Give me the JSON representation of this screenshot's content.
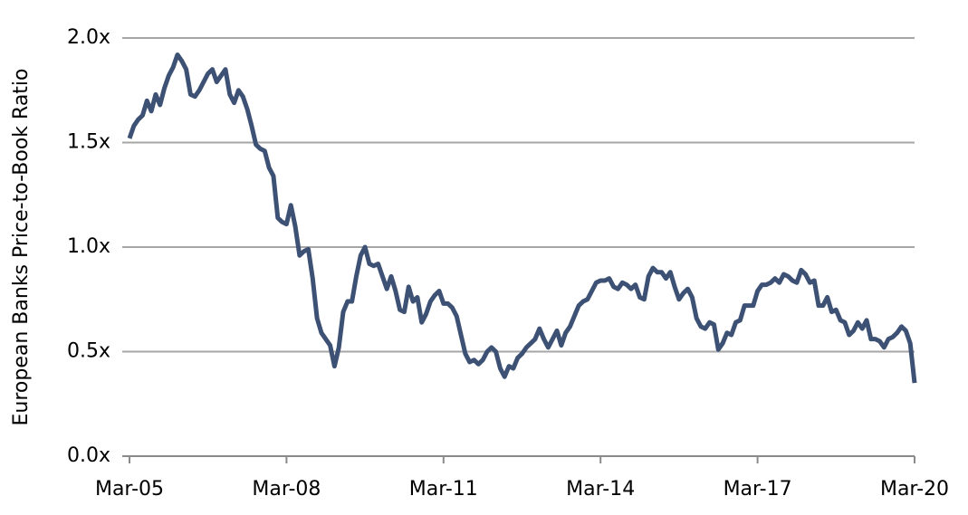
{
  "chart_data": {
    "type": "line",
    "y_label": "European Banks Price-to-Book Ratio",
    "categories": [
      "Mar-05",
      null,
      null,
      null,
      null,
      null,
      null,
      null,
      null,
      null,
      null,
      null,
      null,
      null,
      null,
      null,
      null,
      null,
      null,
      null,
      null,
      null,
      null,
      null,
      null,
      null,
      null,
      null,
      null,
      null,
      null,
      null,
      null,
      null,
      null,
      null,
      "Mar-08",
      null,
      null,
      null,
      null,
      null,
      null,
      null,
      null,
      null,
      null,
      null,
      null,
      null,
      null,
      null,
      null,
      null,
      null,
      null,
      null,
      null,
      null,
      null,
      null,
      null,
      null,
      null,
      null,
      null,
      null,
      null,
      null,
      null,
      null,
      null,
      "Mar-11",
      null,
      null,
      null,
      null,
      null,
      null,
      null,
      null,
      null,
      null,
      null,
      null,
      null,
      null,
      null,
      null,
      null,
      null,
      null,
      null,
      null,
      null,
      null,
      null,
      null,
      null,
      null,
      null,
      null,
      null,
      null,
      null,
      null,
      null,
      null,
      "Mar-14",
      null,
      null,
      null,
      null,
      null,
      null,
      null,
      null,
      null,
      null,
      null,
      null,
      null,
      null,
      null,
      null,
      null,
      null,
      null,
      null,
      null,
      null,
      null,
      null,
      null,
      null,
      null,
      null,
      null,
      null,
      null,
      null,
      null,
      null,
      null,
      "Mar-17",
      null,
      null,
      null,
      null,
      null,
      null,
      null,
      null,
      null,
      null,
      null,
      null,
      null,
      null,
      null,
      null,
      null,
      null,
      null,
      null,
      null,
      null,
      null,
      null,
      null,
      null,
      null,
      null,
      null,
      null,
      null,
      null,
      null,
      null,
      null,
      "Mar-20"
    ],
    "series": [
      {
        "color": "#3d5174",
        "values": [
          1.52,
          1.58,
          1.61,
          1.63,
          1.7,
          1.65,
          1.73,
          1.68,
          1.76,
          1.82,
          1.86,
          1.92,
          1.89,
          1.85,
          1.73,
          1.72,
          1.75,
          1.79,
          1.83,
          1.85,
          1.79,
          1.82,
          1.85,
          1.73,
          1.69,
          1.75,
          1.72,
          1.66,
          1.58,
          1.49,
          1.47,
          1.46,
          1.38,
          1.34,
          1.14,
          1.12,
          1.11,
          1.2,
          1.1,
          0.96,
          0.98,
          0.99,
          0.85,
          0.66,
          0.59,
          0.56,
          0.53,
          0.43,
          0.52,
          0.69,
          0.74,
          0.74,
          0.86,
          0.96,
          1.0,
          0.92,
          0.91,
          0.92,
          0.86,
          0.8,
          0.86,
          0.79,
          0.7,
          0.69,
          0.81,
          0.74,
          0.76,
          0.64,
          0.68,
          0.74,
          0.77,
          0.79,
          0.73,
          0.73,
          0.71,
          0.67,
          0.58,
          0.49,
          0.45,
          0.46,
          0.44,
          0.46,
          0.5,
          0.52,
          0.5,
          0.42,
          0.38,
          0.43,
          0.42,
          0.47,
          0.49,
          0.52,
          0.54,
          0.56,
          0.61,
          0.56,
          0.52,
          0.56,
          0.6,
          0.53,
          0.59,
          0.62,
          0.67,
          0.72,
          0.74,
          0.75,
          0.79,
          0.83,
          0.84,
          0.84,
          0.85,
          0.81,
          0.8,
          0.83,
          0.82,
          0.8,
          0.82,
          0.76,
          0.75,
          0.86,
          0.9,
          0.88,
          0.88,
          0.85,
          0.88,
          0.81,
          0.75,
          0.78,
          0.8,
          0.76,
          0.66,
          0.62,
          0.61,
          0.64,
          0.63,
          0.51,
          0.54,
          0.59,
          0.58,
          0.64,
          0.65,
          0.72,
          0.72,
          0.72,
          0.79,
          0.82,
          0.82,
          0.83,
          0.85,
          0.83,
          0.87,
          0.86,
          0.84,
          0.83,
          0.89,
          0.87,
          0.83,
          0.84,
          0.72,
          0.72,
          0.76,
          0.69,
          0.7,
          0.65,
          0.64,
          0.58,
          0.6,
          0.64,
          0.61,
          0.65,
          0.56,
          0.56,
          0.55,
          0.52,
          0.56,
          0.57,
          0.59,
          0.62,
          0.6,
          0.54,
          0.35
        ]
      }
    ],
    "ylim": [
      0,
      2
    ],
    "yticks": [
      {
        "value": 0,
        "label": "0.0x"
      },
      {
        "value": 0.5,
        "label": "0.5x"
      },
      {
        "value": 1,
        "label": "1.0x"
      },
      {
        "value": 1.5,
        "label": "1.5x"
      },
      {
        "value": 2,
        "label": "2.0x"
      }
    ],
    "grid": true
  }
}
